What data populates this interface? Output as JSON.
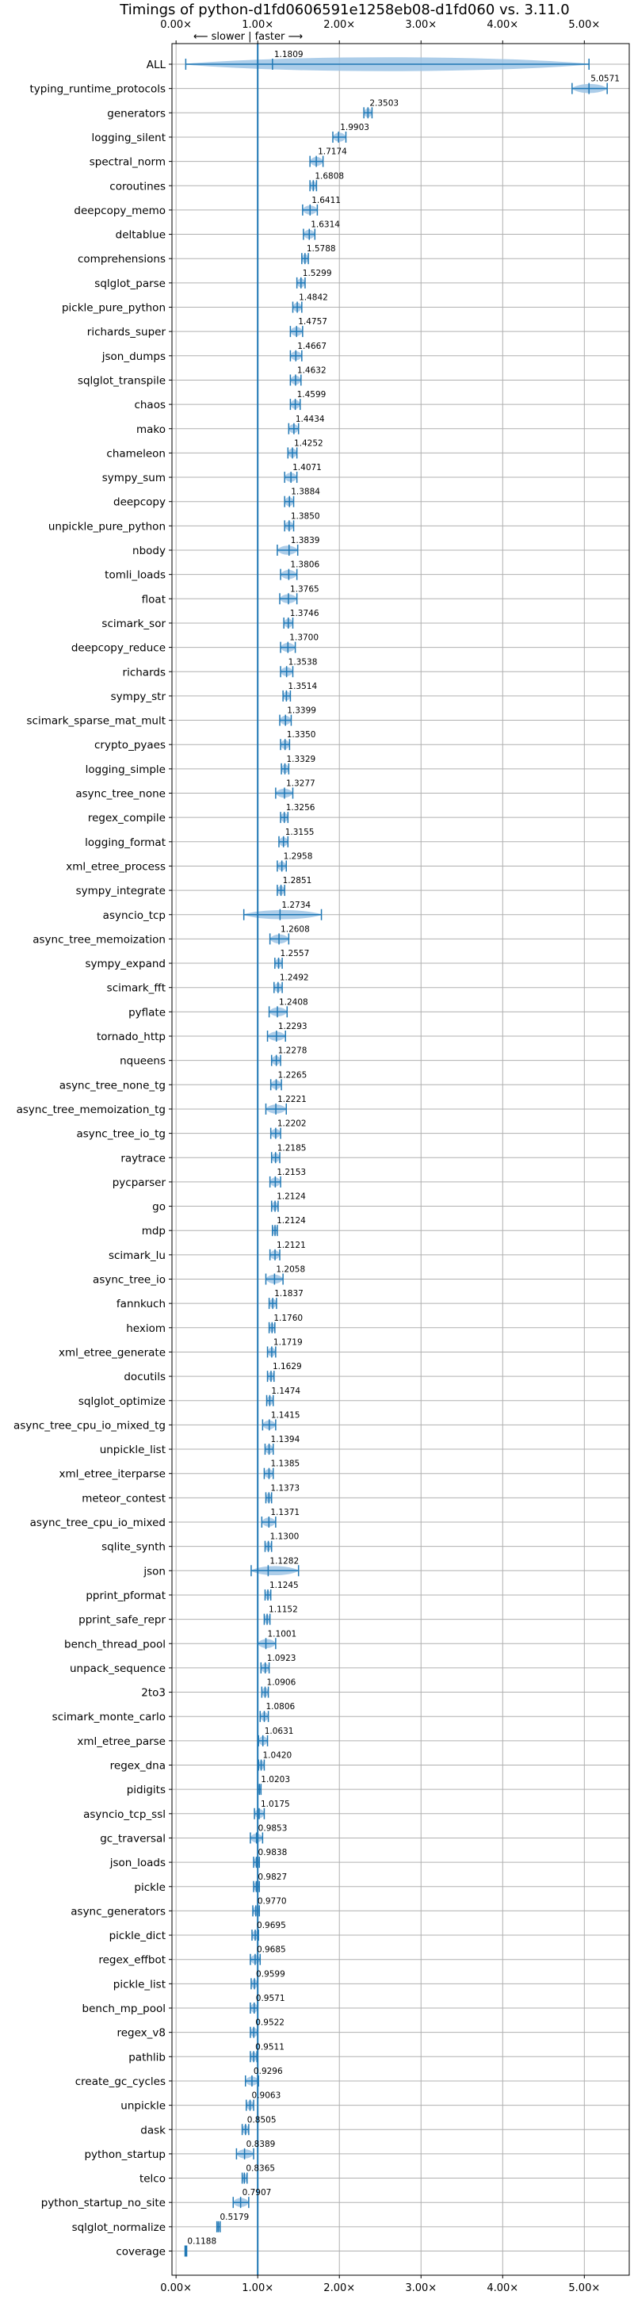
{
  "chart_data": {
    "type": "violin",
    "title": "Timings of python-d1fd0606591e1258eb08-d1fd060 vs. 3.11.0",
    "subtitle": "⟵ slower | faster ⟶",
    "xticks": [
      "0.00×",
      "1.00×",
      "2.00×",
      "3.00×",
      "4.00×",
      "5.00×"
    ],
    "xtick_values": [
      0,
      1,
      2,
      3,
      4,
      5
    ],
    "xlim": [
      -0.05,
      5.55
    ],
    "grid": true,
    "reference_line": 1.0,
    "colors": {
      "violin": "#9ec5e6",
      "median": "#1f77b4",
      "highlight": "#d62728",
      "grid": "#b0b0b0"
    },
    "benchmarks": [
      {
        "name": "ALL",
        "value": 1.1809,
        "label": "1.1809",
        "low": 0.1188,
        "high": 5.0571
      },
      {
        "name": "typing_runtime_protocols",
        "value": 5.0571,
        "label": "5.0571",
        "low": 4.85,
        "high": 5.28
      },
      {
        "name": "generators",
        "value": 2.3503,
        "label": "2.3503",
        "low": 2.3,
        "high": 2.4
      },
      {
        "name": "logging_silent",
        "value": 1.9903,
        "label": "1.9903",
        "low": 1.92,
        "high": 2.08
      },
      {
        "name": "spectral_norm",
        "value": 1.7174,
        "label": "1.7174",
        "low": 1.64,
        "high": 1.8
      },
      {
        "name": "coroutines",
        "value": 1.6808,
        "label": "1.6808",
        "low": 1.64,
        "high": 1.72
      },
      {
        "name": "deepcopy_memo",
        "value": 1.6411,
        "label": "1.6411",
        "low": 1.55,
        "high": 1.73
      },
      {
        "name": "deltablue",
        "value": 1.6314,
        "label": "1.6314",
        "low": 1.56,
        "high": 1.7
      },
      {
        "name": "comprehensions",
        "value": 1.5788,
        "label": "1.5788",
        "low": 1.54,
        "high": 1.62
      },
      {
        "name": "sqlglot_parse",
        "value": 1.5299,
        "label": "1.5299",
        "low": 1.48,
        "high": 1.58
      },
      {
        "name": "pickle_pure_python",
        "value": 1.4842,
        "label": "1.4842",
        "low": 1.43,
        "high": 1.54
      },
      {
        "name": "richards_super",
        "value": 1.4757,
        "label": "1.4757",
        "low": 1.4,
        "high": 1.55
      },
      {
        "name": "json_dumps",
        "value": 1.4667,
        "label": "1.4667",
        "low": 1.4,
        "high": 1.54
      },
      {
        "name": "sqlglot_transpile",
        "value": 1.4632,
        "label": "1.4632",
        "low": 1.4,
        "high": 1.53
      },
      {
        "name": "chaos",
        "value": 1.4599,
        "label": "1.4599",
        "low": 1.4,
        "high": 1.52
      },
      {
        "name": "mako",
        "value": 1.4434,
        "label": "1.4434",
        "low": 1.38,
        "high": 1.5
      },
      {
        "name": "chameleon",
        "value": 1.4252,
        "label": "1.4252",
        "low": 1.37,
        "high": 1.48
      },
      {
        "name": "sympy_sum",
        "value": 1.4071,
        "label": "1.4071",
        "low": 1.33,
        "high": 1.48
      },
      {
        "name": "deepcopy",
        "value": 1.3884,
        "label": "1.3884",
        "low": 1.33,
        "high": 1.44
      },
      {
        "name": "unpickle_pure_python",
        "value": 1.385,
        "label": "1.3850",
        "low": 1.33,
        "high": 1.44
      },
      {
        "name": "nbody",
        "value": 1.3839,
        "label": "1.3839",
        "low": 1.24,
        "high": 1.49
      },
      {
        "name": "tomli_loads",
        "value": 1.3806,
        "label": "1.3806",
        "low": 1.28,
        "high": 1.48
      },
      {
        "name": "float",
        "value": 1.3765,
        "label": "1.3765",
        "low": 1.27,
        "high": 1.48
      },
      {
        "name": "scimark_sor",
        "value": 1.3746,
        "label": "1.3746",
        "low": 1.32,
        "high": 1.43
      },
      {
        "name": "deepcopy_reduce",
        "value": 1.37,
        "label": "1.3700",
        "low": 1.28,
        "high": 1.46
      },
      {
        "name": "richards",
        "value": 1.3538,
        "label": "1.3538",
        "low": 1.28,
        "high": 1.43
      },
      {
        "name": "sympy_str",
        "value": 1.3514,
        "label": "1.3514",
        "low": 1.31,
        "high": 1.4
      },
      {
        "name": "scimark_sparse_mat_mult",
        "value": 1.3399,
        "label": "1.3399",
        "low": 1.27,
        "high": 1.41
      },
      {
        "name": "crypto_pyaes",
        "value": 1.335,
        "label": "1.3350",
        "low": 1.28,
        "high": 1.39
      },
      {
        "name": "logging_simple",
        "value": 1.3329,
        "label": "1.3329",
        "low": 1.29,
        "high": 1.38
      },
      {
        "name": "async_tree_none",
        "value": 1.3277,
        "label": "1.3277",
        "low": 1.22,
        "high": 1.43
      },
      {
        "name": "regex_compile",
        "value": 1.3256,
        "label": "1.3256",
        "low": 1.28,
        "high": 1.37
      },
      {
        "name": "logging_format",
        "value": 1.3155,
        "label": "1.3155",
        "low": 1.26,
        "high": 1.37
      },
      {
        "name": "xml_etree_process",
        "value": 1.2958,
        "label": "1.2958",
        "low": 1.24,
        "high": 1.35
      },
      {
        "name": "sympy_integrate",
        "value": 1.2851,
        "label": "1.2851",
        "low": 1.24,
        "high": 1.33
      },
      {
        "name": "asyncio_tcp",
        "value": 1.2734,
        "label": "1.2734",
        "low": 0.83,
        "high": 1.78
      },
      {
        "name": "async_tree_memoization",
        "value": 1.2608,
        "label": "1.2608",
        "low": 1.15,
        "high": 1.38
      },
      {
        "name": "sympy_expand",
        "value": 1.2557,
        "label": "1.2557",
        "low": 1.21,
        "high": 1.3
      },
      {
        "name": "scimark_fft",
        "value": 1.2492,
        "label": "1.2492",
        "low": 1.2,
        "high": 1.3
      },
      {
        "name": "pyflate",
        "value": 1.2408,
        "label": "1.2408",
        "low": 1.14,
        "high": 1.36
      },
      {
        "name": "tornado_http",
        "value": 1.2293,
        "label": "1.2293",
        "low": 1.12,
        "high": 1.34
      },
      {
        "name": "nqueens",
        "value": 1.2278,
        "label": "1.2278",
        "low": 1.17,
        "high": 1.28
      },
      {
        "name": "async_tree_none_tg",
        "value": 1.2265,
        "label": "1.2265",
        "low": 1.16,
        "high": 1.29
      },
      {
        "name": "async_tree_memoization_tg",
        "value": 1.2221,
        "label": "1.2221",
        "low": 1.1,
        "high": 1.35
      },
      {
        "name": "async_tree_io_tg",
        "value": 1.2202,
        "label": "1.2202",
        "low": 1.16,
        "high": 1.28
      },
      {
        "name": "raytrace",
        "value": 1.2185,
        "label": "1.2185",
        "low": 1.17,
        "high": 1.27
      },
      {
        "name": "pycparser",
        "value": 1.2153,
        "label": "1.2153",
        "low": 1.15,
        "high": 1.28
      },
      {
        "name": "go",
        "value": 1.2124,
        "label": "1.2124",
        "low": 1.17,
        "high": 1.25
      },
      {
        "name": "mdp",
        "value": 1.2124,
        "label": "1.2124",
        "low": 1.18,
        "high": 1.24
      },
      {
        "name": "scimark_lu",
        "value": 1.2121,
        "label": "1.2121",
        "low": 1.15,
        "high": 1.27
      },
      {
        "name": "async_tree_io",
        "value": 1.2058,
        "label": "1.2058",
        "low": 1.1,
        "high": 1.31
      },
      {
        "name": "fannkuch",
        "value": 1.1837,
        "label": "1.1837",
        "low": 1.14,
        "high": 1.23
      },
      {
        "name": "hexiom",
        "value": 1.176,
        "label": "1.1760",
        "low": 1.14,
        "high": 1.21
      },
      {
        "name": "xml_etree_generate",
        "value": 1.1719,
        "label": "1.1719",
        "low": 1.12,
        "high": 1.22
      },
      {
        "name": "docutils",
        "value": 1.1629,
        "label": "1.1629",
        "low": 1.12,
        "high": 1.2
      },
      {
        "name": "sqlglot_optimize",
        "value": 1.1474,
        "label": "1.1474",
        "low": 1.11,
        "high": 1.19
      },
      {
        "name": "async_tree_cpu_io_mixed_tg",
        "value": 1.1415,
        "label": "1.1415",
        "low": 1.06,
        "high": 1.22
      },
      {
        "name": "unpickle_list",
        "value": 1.1394,
        "label": "1.1394",
        "low": 1.09,
        "high": 1.19
      },
      {
        "name": "xml_etree_iterparse",
        "value": 1.1385,
        "label": "1.1385",
        "low": 1.08,
        "high": 1.19
      },
      {
        "name": "meteor_contest",
        "value": 1.1373,
        "label": "1.1373",
        "low": 1.1,
        "high": 1.17
      },
      {
        "name": "async_tree_cpu_io_mixed",
        "value": 1.1371,
        "label": "1.1371",
        "low": 1.05,
        "high": 1.22
      },
      {
        "name": "sqlite_synth",
        "value": 1.13,
        "label": "1.1300",
        "low": 1.09,
        "high": 1.17
      },
      {
        "name": "json",
        "value": 1.1282,
        "label": "1.1282",
        "low": 0.92,
        "high": 1.5
      },
      {
        "name": "pprint_pformat",
        "value": 1.1245,
        "label": "1.1245",
        "low": 1.09,
        "high": 1.16
      },
      {
        "name": "pprint_safe_repr",
        "value": 1.1152,
        "label": "1.1152",
        "low": 1.08,
        "high": 1.15
      },
      {
        "name": "bench_thread_pool",
        "value": 1.1001,
        "label": "1.1001",
        "low": 1.0,
        "high": 1.22
      },
      {
        "name": "unpack_sequence",
        "value": 1.0923,
        "label": "1.0923",
        "low": 1.04,
        "high": 1.14
      },
      {
        "name": "2to3",
        "value": 1.0906,
        "label": "1.0906",
        "low": 1.05,
        "high": 1.13
      },
      {
        "name": "scimark_monte_carlo",
        "value": 1.0806,
        "label": "1.0806",
        "low": 1.03,
        "high": 1.13
      },
      {
        "name": "xml_etree_parse",
        "value": 1.0631,
        "label": "1.0631",
        "low": 1.01,
        "high": 1.12
      },
      {
        "name": "regex_dna",
        "value": 1.042,
        "label": "1.0420",
        "low": 1.01,
        "high": 1.08
      },
      {
        "name": "pidigits",
        "value": 1.0203,
        "label": "1.0203",
        "low": 1.0,
        "high": 1.04
      },
      {
        "name": "asyncio_tcp_ssl",
        "value": 1.0175,
        "label": "1.0175",
        "low": 0.96,
        "high": 1.08
      },
      {
        "name": "gc_traversal",
        "value": 0.9853,
        "label": "0.9853",
        "low": 0.91,
        "high": 1.06
      },
      {
        "name": "json_loads",
        "value": 0.9838,
        "label": "0.9838",
        "low": 0.95,
        "high": 1.02
      },
      {
        "name": "pickle",
        "value": 0.9827,
        "label": "0.9827",
        "low": 0.95,
        "high": 1.02
      },
      {
        "name": "async_generators",
        "value": 0.977,
        "label": "0.9770",
        "low": 0.94,
        "high": 1.02
      },
      {
        "name": "pickle_dict",
        "value": 0.9695,
        "label": "0.9695",
        "low": 0.93,
        "high": 1.01
      },
      {
        "name": "regex_effbot",
        "value": 0.9685,
        "label": "0.9685",
        "low": 0.91,
        "high": 1.03
      },
      {
        "name": "pickle_list",
        "value": 0.9599,
        "label": "0.9599",
        "low": 0.92,
        "high": 1.0
      },
      {
        "name": "bench_mp_pool",
        "value": 0.9571,
        "label": "0.9571",
        "low": 0.91,
        "high": 1.0
      },
      {
        "name": "regex_v8",
        "value": 0.9522,
        "label": "0.9522",
        "low": 0.91,
        "high": 1.0
      },
      {
        "name": "pathlib",
        "value": 0.9511,
        "label": "0.9511",
        "low": 0.91,
        "high": 0.99
      },
      {
        "name": "create_gc_cycles",
        "value": 0.9296,
        "label": "0.9296",
        "low": 0.85,
        "high": 1.01
      },
      {
        "name": "unpickle",
        "value": 0.9063,
        "label": "0.9063",
        "low": 0.86,
        "high": 0.95
      },
      {
        "name": "dask",
        "value": 0.8505,
        "label": "0.8505",
        "low": 0.81,
        "high": 0.89
      },
      {
        "name": "python_startup",
        "value": 0.8389,
        "label": "0.8389",
        "low": 0.74,
        "high": 0.95
      },
      {
        "name": "telco",
        "value": 0.8365,
        "label": "0.8365",
        "low": 0.81,
        "high": 0.87
      },
      {
        "name": "python_startup_no_site",
        "value": 0.7907,
        "label": "0.7907",
        "low": 0.7,
        "high": 0.89
      },
      {
        "name": "sqlglot_normalize",
        "value": 0.5179,
        "label": "0.5179",
        "low": 0.5,
        "high": 0.54
      },
      {
        "name": "coverage",
        "value": 0.1188,
        "label": "0.1188",
        "low": 0.11,
        "high": 0.13
      }
    ]
  }
}
